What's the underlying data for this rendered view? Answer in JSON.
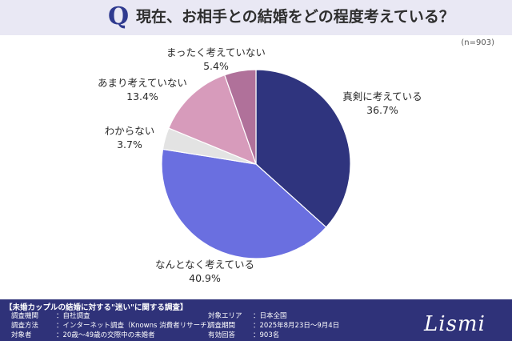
{
  "header": {
    "q_mark": "Q",
    "question": "現在、お相手との結婚をどの程度考えている？"
  },
  "n_note": "(n=903)",
  "chart_data": {
    "type": "pie",
    "title": "現在、お相手との結婚をどの程度考えている？",
    "n": 903,
    "start": "12 o'clock",
    "direction": "clockwise",
    "slices": [
      {
        "label": "真剣に考えている",
        "value": 36.7,
        "display": "36.7%",
        "color": "#2f347e"
      },
      {
        "label": "なんとなく考えている",
        "value": 40.9,
        "display": "40.9%",
        "color": "#6a6fe0"
      },
      {
        "label": "わからない",
        "value": 3.7,
        "display": "3.7%",
        "color": "#e3e3e3"
      },
      {
        "label": "あまり考えていない",
        "value": 13.4,
        "display": "13.4%",
        "color": "#d79bbb"
      },
      {
        "label": "まったく考えていない",
        "value": 5.4,
        "display": "5.4%",
        "color": "#b0719a"
      }
    ]
  },
  "footer": {
    "title": "【未婚カップルの結婚に対する\"迷い\"に関する調査】",
    "left": [
      {
        "k": "調査機関",
        "v": "：自社調査"
      },
      {
        "k": "調査方法",
        "v": "：インターネット調査（Knowns 消費者リサーチ）"
      },
      {
        "k": "対象者",
        "v": "：20歳～49歳の交際中の未婚者"
      }
    ],
    "right": [
      {
        "k": "対象エリア",
        "v": "：日本全国"
      },
      {
        "k": "調査期間",
        "v": "：2025年8月23日～9月4日"
      },
      {
        "k": "有効回答",
        "v": "：903名"
      }
    ],
    "logo": "Lismi"
  }
}
